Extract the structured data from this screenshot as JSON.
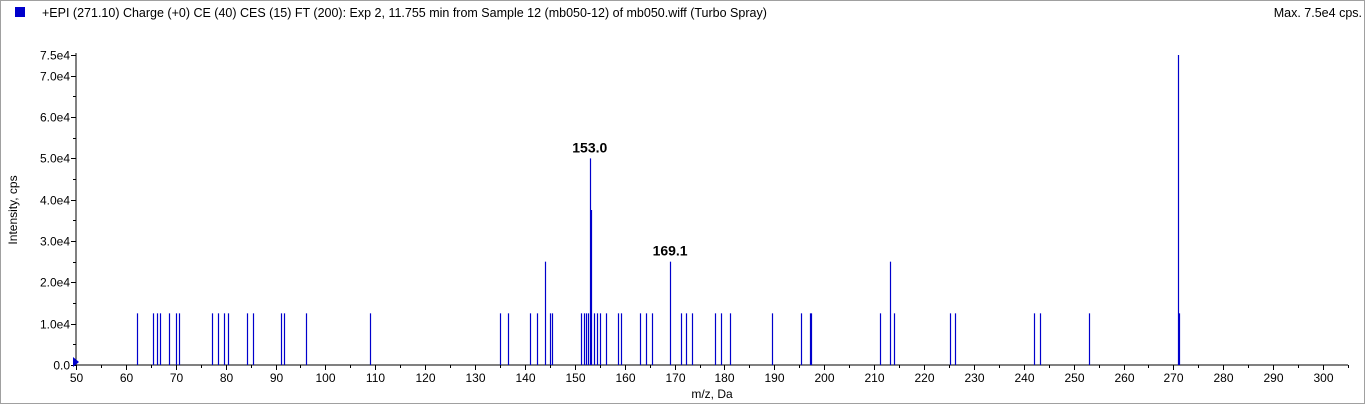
{
  "header": {
    "title": "+EPI (271.10) Charge (+0) CE (40) CES (15) FT (200): Exp 2, 11.755 min from Sample 12 (mb050-12) of mb050.wiff (Turbo Spray)",
    "max": "Max. 7.5e4 cps.",
    "legend_color": "#0000cc"
  },
  "chart_data": {
    "type": "bar",
    "title": "+EPI (271.10) Charge (+0) CE (40) CES (15) FT (200): Exp 2, 11.755 min from Sample 12 (mb050-12) of mb050.wiff (Turbo Spray)",
    "xlabel": "m/z, Da",
    "ylabel": "Intensity, cps",
    "xlim": [
      50,
      305
    ],
    "ylim": [
      0,
      75000
    ],
    "x_ticks": [
      50,
      60,
      70,
      80,
      90,
      100,
      110,
      120,
      130,
      140,
      150,
      160,
      170,
      180,
      190,
      200,
      210,
      220,
      230,
      240,
      250,
      260,
      270,
      280,
      290,
      300
    ],
    "y_ticks": [
      {
        "value": 0,
        "label": "0.0"
      },
      {
        "value": 10000,
        "label": "1.0e4"
      },
      {
        "value": 20000,
        "label": "2.0e4"
      },
      {
        "value": 30000,
        "label": "3.0e4"
      },
      {
        "value": 40000,
        "label": "4.0e4"
      },
      {
        "value": 50000,
        "label": "5.0e4"
      },
      {
        "value": 60000,
        "label": "6.0e4"
      },
      {
        "value": 70000,
        "label": "7.0e4"
      },
      {
        "value": 75000,
        "label": "7.5e4"
      }
    ],
    "color": "#0000cc",
    "peaks": [
      {
        "mz": 62.3,
        "intensity": 12500
      },
      {
        "mz": 65.5,
        "intensity": 12500
      },
      {
        "mz": 66.3,
        "intensity": 12500
      },
      {
        "mz": 66.8,
        "intensity": 12500
      },
      {
        "mz": 68.6,
        "intensity": 12500
      },
      {
        "mz": 70.0,
        "intensity": 12500
      },
      {
        "mz": 70.6,
        "intensity": 12500
      },
      {
        "mz": 77.2,
        "intensity": 12500
      },
      {
        "mz": 78.5,
        "intensity": 12500
      },
      {
        "mz": 79.6,
        "intensity": 12500
      },
      {
        "mz": 80.4,
        "intensity": 12500
      },
      {
        "mz": 84.3,
        "intensity": 12500
      },
      {
        "mz": 85.5,
        "intensity": 12500
      },
      {
        "mz": 91.0,
        "intensity": 12500
      },
      {
        "mz": 91.6,
        "intensity": 12500
      },
      {
        "mz": 96.1,
        "intensity": 12500
      },
      {
        "mz": 108.9,
        "intensity": 12500
      },
      {
        "mz": 134.9,
        "intensity": 12500
      },
      {
        "mz": 136.6,
        "intensity": 12500
      },
      {
        "mz": 141.1,
        "intensity": 12500
      },
      {
        "mz": 142.5,
        "intensity": 12500
      },
      {
        "mz": 144.1,
        "intensity": 25000
      },
      {
        "mz": 145.1,
        "intensity": 12500
      },
      {
        "mz": 145.5,
        "intensity": 12500
      },
      {
        "mz": 151.2,
        "intensity": 12500
      },
      {
        "mz": 151.8,
        "intensity": 12500
      },
      {
        "mz": 152.2,
        "intensity": 12500
      },
      {
        "mz": 152.6,
        "intensity": 12500
      },
      {
        "mz": 153.0,
        "intensity": 50000
      },
      {
        "mz": 153.3,
        "intensity": 37500
      },
      {
        "mz": 153.8,
        "intensity": 12500
      },
      {
        "mz": 154.5,
        "intensity": 12500
      },
      {
        "mz": 155.0,
        "intensity": 12500
      },
      {
        "mz": 156.2,
        "intensity": 12500
      },
      {
        "mz": 158.7,
        "intensity": 12500
      },
      {
        "mz": 159.3,
        "intensity": 12500
      },
      {
        "mz": 163.0,
        "intensity": 12500
      },
      {
        "mz": 164.2,
        "intensity": 12500
      },
      {
        "mz": 165.5,
        "intensity": 12500
      },
      {
        "mz": 169.1,
        "intensity": 25000
      },
      {
        "mz": 171.2,
        "intensity": 12500
      },
      {
        "mz": 172.2,
        "intensity": 12500
      },
      {
        "mz": 173.5,
        "intensity": 12500
      },
      {
        "mz": 178.1,
        "intensity": 12500
      },
      {
        "mz": 179.3,
        "intensity": 12500
      },
      {
        "mz": 181.2,
        "intensity": 12500
      },
      {
        "mz": 189.5,
        "intensity": 12500
      },
      {
        "mz": 195.4,
        "intensity": 12500
      },
      {
        "mz": 197.1,
        "intensity": 12500
      },
      {
        "mz": 197.4,
        "intensity": 12500
      },
      {
        "mz": 211.2,
        "intensity": 12500
      },
      {
        "mz": 213.1,
        "intensity": 25000
      },
      {
        "mz": 213.9,
        "intensity": 12500
      },
      {
        "mz": 225.2,
        "intensity": 12500
      },
      {
        "mz": 226.2,
        "intensity": 12500
      },
      {
        "mz": 242.1,
        "intensity": 12500
      },
      {
        "mz": 243.2,
        "intensity": 12500
      },
      {
        "mz": 253.1,
        "intensity": 12500
      },
      {
        "mz": 271.0,
        "intensity": 75000
      },
      {
        "mz": 271.2,
        "intensity": 12500
      }
    ],
    "annotations": [
      {
        "mz": 153.0,
        "intensity": 50000,
        "label": "153.0"
      },
      {
        "mz": 169.1,
        "intensity": 25000,
        "label": "169.1"
      }
    ]
  }
}
